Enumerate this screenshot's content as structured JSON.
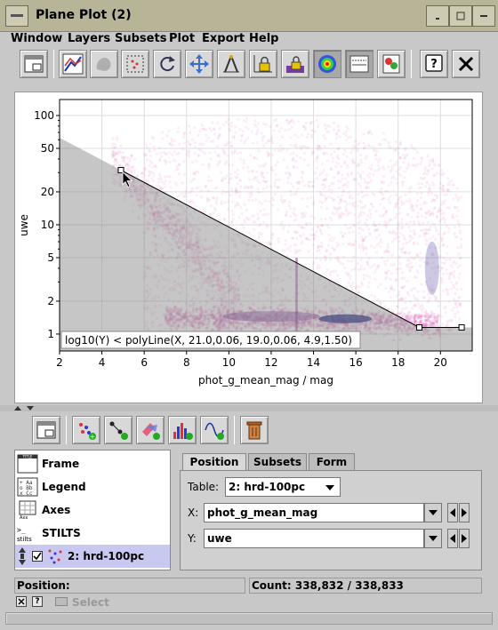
{
  "window": {
    "title": "Plane Plot (2)"
  },
  "menu": [
    "Window",
    "Layers",
    "Subsets",
    "Plot",
    "Export",
    "Help"
  ],
  "toolbar": {
    "icons": [
      "window-icon",
      "replot-icon",
      "blob-icon",
      "lasso-icon",
      "rotate-icon",
      "navigation-icon",
      "axis-lock-icon",
      "aux-lock-icon",
      "lock-colorbar-icon",
      "density-icon",
      "sketch-icon",
      "export-icon",
      "help-icon",
      "close-icon"
    ]
  },
  "plot": {
    "xlabel": "phot_g_mean_mag / mag",
    "ylabel": "uwe",
    "x_ticks": [
      "2",
      "4",
      "6",
      "8",
      "10",
      "12",
      "14",
      "16",
      "18",
      "20"
    ],
    "y_ticks": [
      "100",
      "50",
      "20",
      "10",
      "5",
      "2",
      "1"
    ],
    "annotation": "log10(Y) < polyLine(X, 21.0,0.06, 19.0,0.06, 4.9,1.50)"
  },
  "chart_data": {
    "type": "scatter",
    "xlabel": "phot_g_mean_mag / mag",
    "ylabel": "uwe",
    "xlim": [
      2,
      21.5
    ],
    "ylim": [
      0.7,
      140
    ],
    "y_scale": "log",
    "grid": true,
    "polyline": [
      [
        4.9,
        31.6
      ],
      [
        19.0,
        1.15
      ],
      [
        21.0,
        1.15
      ]
    ],
    "density_color": "#e070c0",
    "dense_color": "#1a2a80"
  },
  "control": {
    "layers": [
      {
        "label": "Frame",
        "icon": "frame-icon"
      },
      {
        "label": "Legend",
        "icon": "legend-icon"
      },
      {
        "label": "Axes",
        "icon": "axes-icon"
      },
      {
        "label": "STILTS",
        "icon": "stilts-icon"
      },
      {
        "label": "2: hrd-100pc",
        "icon": "scatter-layer-icon"
      }
    ],
    "tabs": [
      "Position",
      "Subsets",
      "Form"
    ],
    "table_label": "Table:",
    "table_value": "2: hrd-100pc",
    "x_label": "X:",
    "x_value": "phot_g_mean_mag",
    "y_label": "Y:",
    "y_value": "uwe"
  },
  "status": {
    "position_label": "Position:",
    "count_label": "Count: 338,832 / 338,833"
  },
  "footer": {
    "select_label": "Select"
  }
}
